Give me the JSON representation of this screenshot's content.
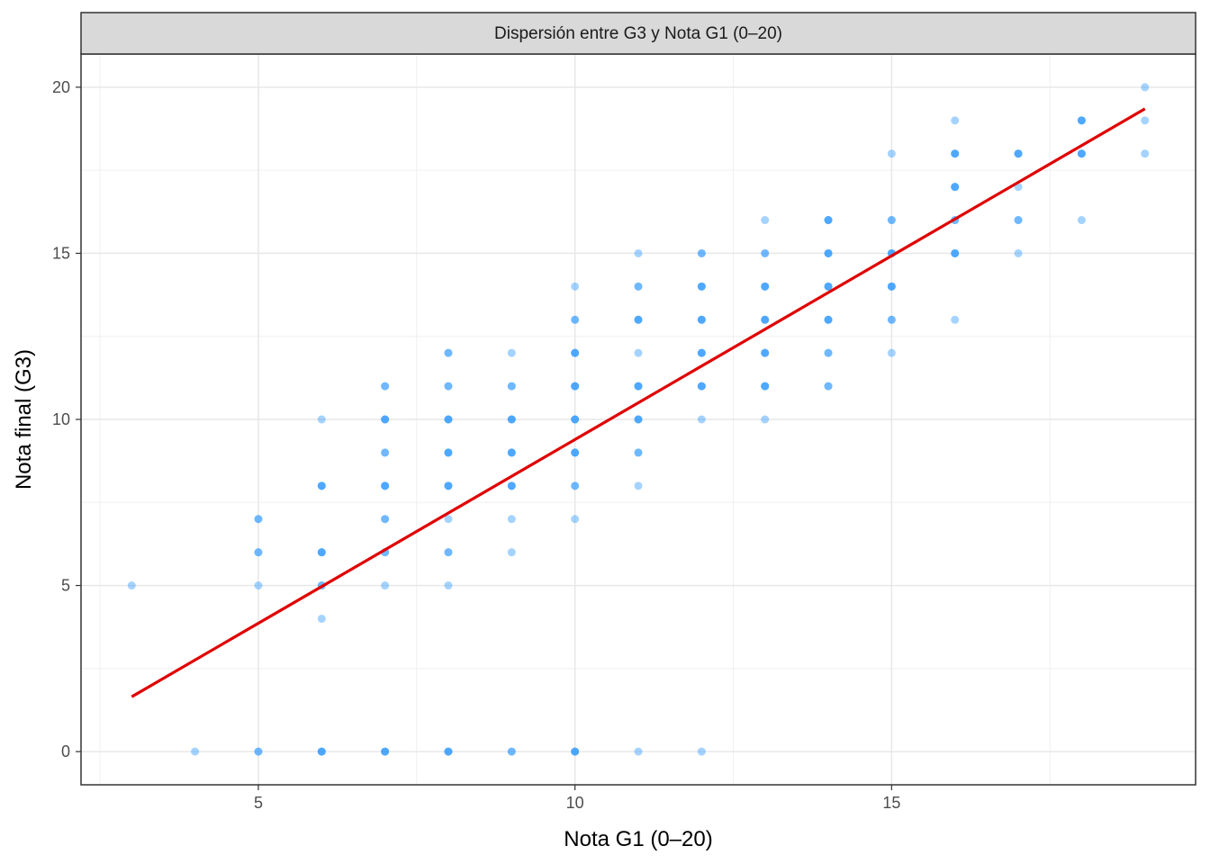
{
  "chart_data": {
    "type": "scatter",
    "title": "Dispersión entre G3 y Nota G1 (0–20)",
    "xlabel": "Nota G1 (0–20)",
    "ylabel": "Nota final (G3)",
    "xlim": [
      2.2,
      19.8
    ],
    "ylim": [
      -1,
      21
    ],
    "x_ticks": [
      5,
      10,
      15
    ],
    "y_ticks": [
      0,
      5,
      10,
      15,
      20
    ],
    "grid": true,
    "point_color": "#1E90FF",
    "point_opacity": 0.4,
    "line_color": "#E00000",
    "points": [
      [
        3,
        5
      ],
      [
        4,
        0
      ],
      [
        5,
        0
      ],
      [
        5,
        0
      ],
      [
        5,
        5
      ],
      [
        5,
        6
      ],
      [
        5,
        6
      ],
      [
        5,
        7
      ],
      [
        5,
        7
      ],
      [
        6,
        0
      ],
      [
        6,
        0
      ],
      [
        6,
        0
      ],
      [
        6,
        4
      ],
      [
        6,
        5
      ],
      [
        6,
        5
      ],
      [
        6,
        6
      ],
      [
        6,
        6
      ],
      [
        6,
        6
      ],
      [
        6,
        8
      ],
      [
        6,
        8
      ],
      [
        6,
        8
      ],
      [
        6,
        10
      ],
      [
        7,
        0
      ],
      [
        7,
        0
      ],
      [
        7,
        0
      ],
      [
        7,
        5
      ],
      [
        7,
        6
      ],
      [
        7,
        6
      ],
      [
        7,
        7
      ],
      [
        7,
        7
      ],
      [
        7,
        8
      ],
      [
        7,
        8
      ],
      [
        7,
        8
      ],
      [
        7,
        9
      ],
      [
        7,
        9
      ],
      [
        7,
        10
      ],
      [
        7,
        10
      ],
      [
        7,
        10
      ],
      [
        7,
        11
      ],
      [
        7,
        11
      ],
      [
        8,
        0
      ],
      [
        8,
        0
      ],
      [
        8,
        0
      ],
      [
        8,
        5
      ],
      [
        8,
        6
      ],
      [
        8,
        6
      ],
      [
        8,
        7
      ],
      [
        8,
        8
      ],
      [
        8,
        8
      ],
      [
        8,
        8
      ],
      [
        8,
        9
      ],
      [
        8,
        9
      ],
      [
        8,
        9
      ],
      [
        8,
        10
      ],
      [
        8,
        10
      ],
      [
        8,
        10
      ],
      [
        8,
        11
      ],
      [
        8,
        11
      ],
      [
        8,
        12
      ],
      [
        8,
        12
      ],
      [
        9,
        0
      ],
      [
        9,
        0
      ],
      [
        9,
        6
      ],
      [
        9,
        7
      ],
      [
        9,
        8
      ],
      [
        9,
        8
      ],
      [
        9,
        8
      ],
      [
        9,
        9
      ],
      [
        9,
        9
      ],
      [
        9,
        9
      ],
      [
        9,
        10
      ],
      [
        9,
        10
      ],
      [
        9,
        10
      ],
      [
        9,
        11
      ],
      [
        9,
        11
      ],
      [
        9,
        12
      ],
      [
        10,
        0
      ],
      [
        10,
        0
      ],
      [
        10,
        0
      ],
      [
        10,
        7
      ],
      [
        10,
        8
      ],
      [
        10,
        8
      ],
      [
        10,
        9
      ],
      [
        10,
        9
      ],
      [
        10,
        9
      ],
      [
        10,
        10
      ],
      [
        10,
        10
      ],
      [
        10,
        10
      ],
      [
        10,
        11
      ],
      [
        10,
        11
      ],
      [
        10,
        11
      ],
      [
        10,
        12
      ],
      [
        10,
        12
      ],
      [
        10,
        12
      ],
      [
        10,
        13
      ],
      [
        10,
        13
      ],
      [
        10,
        14
      ],
      [
        11,
        0
      ],
      [
        11,
        8
      ],
      [
        11,
        9
      ],
      [
        11,
        9
      ],
      [
        11,
        10
      ],
      [
        11,
        10
      ],
      [
        11,
        10
      ],
      [
        11,
        11
      ],
      [
        11,
        11
      ],
      [
        11,
        11
      ],
      [
        11,
        12
      ],
      [
        11,
        13
      ],
      [
        11,
        13
      ],
      [
        11,
        13
      ],
      [
        11,
        14
      ],
      [
        11,
        14
      ],
      [
        11,
        15
      ],
      [
        12,
        0
      ],
      [
        12,
        10
      ],
      [
        12,
        11
      ],
      [
        12,
        11
      ],
      [
        12,
        11
      ],
      [
        12,
        12
      ],
      [
        12,
        12
      ],
      [
        12,
        12
      ],
      [
        12,
        13
      ],
      [
        12,
        13
      ],
      [
        12,
        13
      ],
      [
        12,
        14
      ],
      [
        12,
        14
      ],
      [
        12,
        14
      ],
      [
        12,
        15
      ],
      [
        12,
        15
      ],
      [
        13,
        10
      ],
      [
        13,
        11
      ],
      [
        13,
        11
      ],
      [
        13,
        11
      ],
      [
        13,
        12
      ],
      [
        13,
        12
      ],
      [
        13,
        12
      ],
      [
        13,
        13
      ],
      [
        13,
        13
      ],
      [
        13,
        13
      ],
      [
        13,
        14
      ],
      [
        13,
        14
      ],
      [
        13,
        14
      ],
      [
        13,
        15
      ],
      [
        13,
        15
      ],
      [
        13,
        16
      ],
      [
        14,
        11
      ],
      [
        14,
        11
      ],
      [
        14,
        12
      ],
      [
        14,
        12
      ],
      [
        14,
        13
      ],
      [
        14,
        13
      ],
      [
        14,
        13
      ],
      [
        14,
        14
      ],
      [
        14,
        14
      ],
      [
        14,
        14
      ],
      [
        14,
        15
      ],
      [
        14,
        15
      ],
      [
        14,
        15
      ],
      [
        14,
        16
      ],
      [
        14,
        16
      ],
      [
        14,
        16
      ],
      [
        15,
        12
      ],
      [
        15,
        13
      ],
      [
        15,
        13
      ],
      [
        15,
        14
      ],
      [
        15,
        14
      ],
      [
        15,
        14
      ],
      [
        15,
        15
      ],
      [
        15,
        15
      ],
      [
        15,
        15
      ],
      [
        15,
        16
      ],
      [
        15,
        16
      ],
      [
        15,
        18
      ],
      [
        16,
        13
      ],
      [
        16,
        15
      ],
      [
        16,
        15
      ],
      [
        16,
        15
      ],
      [
        16,
        16
      ],
      [
        16,
        16
      ],
      [
        16,
        17
      ],
      [
        16,
        17
      ],
      [
        16,
        17
      ],
      [
        16,
        18
      ],
      [
        16,
        18
      ],
      [
        16,
        18
      ],
      [
        16,
        19
      ],
      [
        17,
        15
      ],
      [
        17,
        16
      ],
      [
        17,
        16
      ],
      [
        17,
        17
      ],
      [
        17,
        18
      ],
      [
        17,
        18
      ],
      [
        17,
        18
      ],
      [
        18,
        16
      ],
      [
        18,
        18
      ],
      [
        18,
        18
      ],
      [
        18,
        18
      ],
      [
        18,
        19
      ],
      [
        18,
        19
      ],
      [
        18,
        19
      ],
      [
        19,
        18
      ],
      [
        19,
        19
      ],
      [
        19,
        20
      ]
    ],
    "fit_line": [
      [
        3,
        1.65
      ],
      [
        19,
        19.35
      ]
    ]
  }
}
